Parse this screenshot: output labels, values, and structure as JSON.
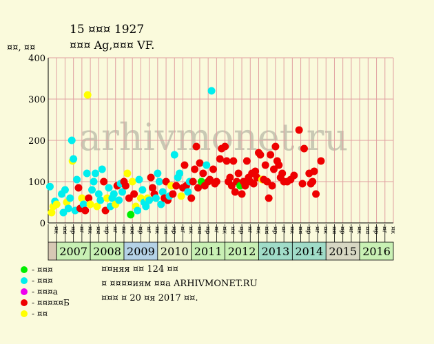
{
  "header": {
    "title_line1": "15 ¤¤¤ 1927",
    "title_line2": "¤¤¤ Ag,¤¤¤ VF.",
    "y_unit": "¤¤, ¤¤"
  },
  "watermark": "arhivmonet.ru",
  "legend": [
    {
      "label": "- ¤¤¤",
      "color": "#00ee00"
    },
    {
      "label": "- ¤¤¤",
      "color": "#00eeee"
    },
    {
      "label": "- ¤¤¤а",
      "color": "#ee00ee"
    },
    {
      "label": "- ¤¤¤¤¤Б",
      "color": "#ee0000"
    },
    {
      "label": "- ¤¤",
      "color": "#ffff00"
    }
  ],
  "info_lines": [
    "¤¤няя ¤¤ 124 ¤¤",
    "¤ ¤¤¤¤иям ¤¤а ARHIVMONET.RU",
    "¤¤¤ ¤ 20 ¤я 2017 ¤¤."
  ],
  "chart_data": {
    "type": "scatter",
    "ylim": [
      0,
      400
    ],
    "yticks": [
      0,
      100,
      200,
      300,
      400
    ],
    "grid": true,
    "years": [
      "2007",
      "2008",
      "2009",
      "2010",
      "2011",
      "2012",
      "2013",
      "2014",
      "2015",
      "2016"
    ],
    "year_colors": [
      "#c8f0b4",
      "#c8f0b4",
      "#b4d2e6",
      "#e6f0c8",
      "#c8f0b4",
      "#c8f0b4",
      "#a0dcc8",
      "#a0dcc8",
      "#d7d7c3",
      "#c8f0b4"
    ],
    "quarter_labels": [
      "¤¤",
      "¤р",
      "¤г",
      "¤к"
    ],
    "x_start": 2006.75,
    "x_end": 2017.0,
    "points": [
      {
        "x": 2006.8,
        "y": 88,
        "s": "cyan"
      },
      {
        "x": 2006.85,
        "y": 25,
        "s": "yellow"
      },
      {
        "x": 2006.9,
        "y": 40,
        "s": "yellow"
      },
      {
        "x": 2006.95,
        "y": 52,
        "s": "cyan"
      },
      {
        "x": 2007.0,
        "y": 45,
        "s": "yellow"
      },
      {
        "x": 2007.15,
        "y": 70,
        "s": "cyan"
      },
      {
        "x": 2007.2,
        "y": 25,
        "s": "cyan"
      },
      {
        "x": 2007.25,
        "y": 80,
        "s": "cyan"
      },
      {
        "x": 2007.3,
        "y": 50,
        "s": "yellow"
      },
      {
        "x": 2007.35,
        "y": 35,
        "s": "cyan"
      },
      {
        "x": 2007.4,
        "y": 60,
        "s": "cyan"
      },
      {
        "x": 2007.45,
        "y": 200,
        "s": "cyan"
      },
      {
        "x": 2007.47,
        "y": 150,
        "s": "yellow"
      },
      {
        "x": 2007.5,
        "y": 155,
        "s": "cyan"
      },
      {
        "x": 2007.55,
        "y": 30,
        "s": "cyan"
      },
      {
        "x": 2007.6,
        "y": 105,
        "s": "cyan"
      },
      {
        "x": 2007.65,
        "y": 85,
        "s": "red"
      },
      {
        "x": 2007.7,
        "y": 35,
        "s": "red"
      },
      {
        "x": 2007.75,
        "y": 60,
        "s": "yellow"
      },
      {
        "x": 2007.8,
        "y": 45,
        "s": "cyan"
      },
      {
        "x": 2007.85,
        "y": 30,
        "s": "red"
      },
      {
        "x": 2007.9,
        "y": 120,
        "s": "cyan"
      },
      {
        "x": 2007.92,
        "y": 310,
        "s": "yellow"
      },
      {
        "x": 2007.95,
        "y": 60,
        "s": "red"
      },
      {
        "x": 2008.0,
        "y": 45,
        "s": "yellow"
      },
      {
        "x": 2008.05,
        "y": 80,
        "s": "cyan"
      },
      {
        "x": 2008.1,
        "y": 100,
        "s": "cyan"
      },
      {
        "x": 2008.15,
        "y": 120,
        "s": "cyan"
      },
      {
        "x": 2008.2,
        "y": 40,
        "s": "yellow"
      },
      {
        "x": 2008.25,
        "y": 70,
        "s": "cyan"
      },
      {
        "x": 2008.3,
        "y": 55,
        "s": "cyan"
      },
      {
        "x": 2008.35,
        "y": 130,
        "s": "cyan"
      },
      {
        "x": 2008.4,
        "y": 100,
        "s": "red"
      },
      {
        "x": 2008.45,
        "y": 30,
        "s": "red"
      },
      {
        "x": 2008.5,
        "y": 60,
        "s": "yellow"
      },
      {
        "x": 2008.55,
        "y": 85,
        "s": "cyan"
      },
      {
        "x": 2008.6,
        "y": 40,
        "s": "cyan"
      },
      {
        "x": 2008.65,
        "y": 60,
        "s": "cyan"
      },
      {
        "x": 2008.7,
        "y": 70,
        "s": "cyan"
      },
      {
        "x": 2008.75,
        "y": 45,
        "s": "yellow"
      },
      {
        "x": 2008.8,
        "y": 90,
        "s": "red"
      },
      {
        "x": 2008.85,
        "y": 55,
        "s": "cyan"
      },
      {
        "x": 2008.9,
        "y": 95,
        "s": "cyan"
      },
      {
        "x": 2008.95,
        "y": 75,
        "s": "cyan"
      },
      {
        "x": 2009.0,
        "y": 100,
        "s": "red"
      },
      {
        "x": 2009.05,
        "y": 90,
        "s": "red"
      },
      {
        "x": 2009.1,
        "y": 120,
        "s": "yellow"
      },
      {
        "x": 2009.15,
        "y": 60,
        "s": "red"
      },
      {
        "x": 2009.2,
        "y": 20,
        "s": "green"
      },
      {
        "x": 2009.25,
        "y": 100,
        "s": "yellow"
      },
      {
        "x": 2009.3,
        "y": 70,
        "s": "red"
      },
      {
        "x": 2009.35,
        "y": 40,
        "s": "yellow"
      },
      {
        "x": 2009.4,
        "y": 30,
        "s": "cyan"
      },
      {
        "x": 2009.45,
        "y": 105,
        "s": "cyan"
      },
      {
        "x": 2009.5,
        "y": 60,
        "s": "yellow"
      },
      {
        "x": 2009.55,
        "y": 80,
        "s": "cyan"
      },
      {
        "x": 2009.6,
        "y": 50,
        "s": "cyan"
      },
      {
        "x": 2009.65,
        "y": 40,
        "s": "cyan"
      },
      {
        "x": 2009.7,
        "y": 60,
        "s": "yellow"
      },
      {
        "x": 2009.75,
        "y": 55,
        "s": "cyan"
      },
      {
        "x": 2009.8,
        "y": 110,
        "s": "red"
      },
      {
        "x": 2009.85,
        "y": 85,
        "s": "red"
      },
      {
        "x": 2009.9,
        "y": 70,
        "s": "red"
      },
      {
        "x": 2009.95,
        "y": 60,
        "s": "cyan"
      },
      {
        "x": 2010.0,
        "y": 120,
        "s": "cyan"
      },
      {
        "x": 2010.05,
        "y": 100,
        "s": "cyan"
      },
      {
        "x": 2010.1,
        "y": 45,
        "s": "cyan"
      },
      {
        "x": 2010.15,
        "y": 75,
        "s": "cyan"
      },
      {
        "x": 2010.2,
        "y": 60,
        "s": "red"
      },
      {
        "x": 2010.25,
        "y": 100,
        "s": "red"
      },
      {
        "x": 2010.3,
        "y": 55,
        "s": "red"
      },
      {
        "x": 2010.35,
        "y": 65,
        "s": "cyan"
      },
      {
        "x": 2010.4,
        "y": 90,
        "s": "yellow"
      },
      {
        "x": 2010.45,
        "y": 70,
        "s": "red"
      },
      {
        "x": 2010.5,
        "y": 165,
        "s": "cyan"
      },
      {
        "x": 2010.55,
        "y": 90,
        "s": "red"
      },
      {
        "x": 2010.6,
        "y": 110,
        "s": "cyan"
      },
      {
        "x": 2010.65,
        "y": 120,
        "s": "cyan"
      },
      {
        "x": 2010.7,
        "y": 65,
        "s": "yellow"
      },
      {
        "x": 2010.75,
        "y": 85,
        "s": "red"
      },
      {
        "x": 2010.8,
        "y": 140,
        "s": "red"
      },
      {
        "x": 2010.85,
        "y": 90,
        "s": "red"
      },
      {
        "x": 2010.9,
        "y": 75,
        "s": "cyan"
      },
      {
        "x": 2010.95,
        "y": 100,
        "s": "cyan"
      },
      {
        "x": 2011.0,
        "y": 60,
        "s": "red"
      },
      {
        "x": 2011.05,
        "y": 100,
        "s": "red"
      },
      {
        "x": 2011.1,
        "y": 130,
        "s": "red"
      },
      {
        "x": 2011.15,
        "y": 185,
        "s": "red"
      },
      {
        "x": 2011.2,
        "y": 85,
        "s": "red"
      },
      {
        "x": 2011.25,
        "y": 145,
        "s": "red"
      },
      {
        "x": 2011.3,
        "y": 100,
        "s": "green"
      },
      {
        "x": 2011.35,
        "y": 120,
        "s": "red"
      },
      {
        "x": 2011.4,
        "y": 90,
        "s": "red"
      },
      {
        "x": 2011.45,
        "y": 140,
        "s": "cyan"
      },
      {
        "x": 2011.5,
        "y": 100,
        "s": "red"
      },
      {
        "x": 2011.55,
        "y": 105,
        "s": "red"
      },
      {
        "x": 2011.6,
        "y": 320,
        "s": "cyan"
      },
      {
        "x": 2011.65,
        "y": 130,
        "s": "red"
      },
      {
        "x": 2011.7,
        "y": 95,
        "s": "red"
      },
      {
        "x": 2011.75,
        "y": 100,
        "s": "red"
      },
      {
        "x": 2011.85,
        "y": 155,
        "s": "red"
      },
      {
        "x": 2011.9,
        "y": 180,
        "s": "red"
      },
      {
        "x": 2012.0,
        "y": 185,
        "s": "red"
      },
      {
        "x": 2012.05,
        "y": 150,
        "s": "red"
      },
      {
        "x": 2012.1,
        "y": 100,
        "s": "red"
      },
      {
        "x": 2012.15,
        "y": 110,
        "s": "red"
      },
      {
        "x": 2012.2,
        "y": 90,
        "s": "red"
      },
      {
        "x": 2012.25,
        "y": 150,
        "s": "red"
      },
      {
        "x": 2012.3,
        "y": 75,
        "s": "red"
      },
      {
        "x": 2012.35,
        "y": 100,
        "s": "red"
      },
      {
        "x": 2012.4,
        "y": 120,
        "s": "red"
      },
      {
        "x": 2012.45,
        "y": 90,
        "s": "green"
      },
      {
        "x": 2012.5,
        "y": 70,
        "s": "red"
      },
      {
        "x": 2012.55,
        "y": 100,
        "s": "red"
      },
      {
        "x": 2012.6,
        "y": 90,
        "s": "red"
      },
      {
        "x": 2012.65,
        "y": 150,
        "s": "red"
      },
      {
        "x": 2012.7,
        "y": 110,
        "s": "red"
      },
      {
        "x": 2012.75,
        "y": 100,
        "s": "red"
      },
      {
        "x": 2012.8,
        "y": 120,
        "s": "red"
      },
      {
        "x": 2012.85,
        "y": 95,
        "s": "red"
      },
      {
        "x": 2012.9,
        "y": 125,
        "s": "red"
      },
      {
        "x": 2012.95,
        "y": 110,
        "s": "red"
      },
      {
        "x": 2013.0,
        "y": 170,
        "s": "red"
      },
      {
        "x": 2013.05,
        "y": 165,
        "s": "red"
      },
      {
        "x": 2013.1,
        "y": 105,
        "s": "yellow"
      },
      {
        "x": 2013.15,
        "y": 105,
        "s": "red"
      },
      {
        "x": 2013.2,
        "y": 140,
        "s": "red"
      },
      {
        "x": 2013.25,
        "y": 100,
        "s": "red"
      },
      {
        "x": 2013.3,
        "y": 60,
        "s": "red"
      },
      {
        "x": 2013.35,
        "y": 165,
        "s": "red"
      },
      {
        "x": 2013.4,
        "y": 90,
        "s": "red"
      },
      {
        "x": 2013.45,
        "y": 130,
        "s": "red"
      },
      {
        "x": 2013.5,
        "y": 185,
        "s": "red"
      },
      {
        "x": 2013.55,
        "y": 150,
        "s": "red"
      },
      {
        "x": 2013.6,
        "y": 140,
        "s": "red"
      },
      {
        "x": 2013.65,
        "y": 110,
        "s": "red"
      },
      {
        "x": 2013.7,
        "y": 120,
        "s": "red"
      },
      {
        "x": 2013.75,
        "y": 100,
        "s": "red"
      },
      {
        "x": 2013.85,
        "y": 100,
        "s": "red"
      },
      {
        "x": 2013.95,
        "y": 105,
        "s": "red"
      },
      {
        "x": 2014.05,
        "y": 115,
        "s": "red"
      },
      {
        "x": 2014.2,
        "y": 225,
        "s": "red"
      },
      {
        "x": 2014.3,
        "y": 95,
        "s": "red"
      },
      {
        "x": 2014.35,
        "y": 180,
        "s": "red"
      },
      {
        "x": 2014.5,
        "y": 120,
        "s": "red"
      },
      {
        "x": 2014.55,
        "y": 95,
        "s": "red"
      },
      {
        "x": 2014.6,
        "y": 100,
        "s": "red"
      },
      {
        "x": 2014.65,
        "y": 125,
        "s": "red"
      },
      {
        "x": 2014.7,
        "y": 70,
        "s": "red"
      },
      {
        "x": 2014.85,
        "y": 150,
        "s": "red"
      }
    ]
  }
}
